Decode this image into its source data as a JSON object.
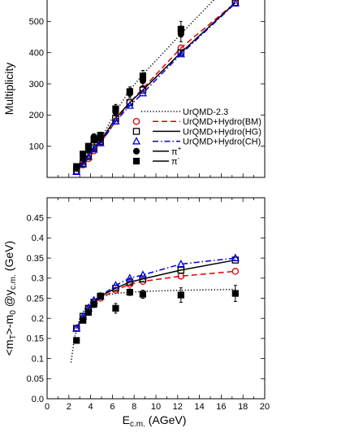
{
  "chart_data": [
    {
      "type": "line",
      "ylabel": "Multiplicity",
      "xlim": [
        0,
        20
      ],
      "ylim": [
        0,
        600
      ],
      "yticks": [
        100,
        200,
        300,
        400,
        500
      ],
      "legend": {
        "placement": "bottom-right",
        "entries": [
          {
            "label": "UrQMD-2.3",
            "kind": "line",
            "style": "dotted",
            "color": "#000000"
          },
          {
            "label": "UrQMD+Hydro(BM)",
            "kind": "line-marker",
            "style": "dashed",
            "marker": "circle-open",
            "color": "#dd0000"
          },
          {
            "label": "UrQMD+Hydro(HG)",
            "kind": "line-marker",
            "style": "solid",
            "marker": "square-open",
            "color": "#000000"
          },
          {
            "label": "UrQMD+Hydro(CH)",
            "kind": "line-marker",
            "style": "dashdot",
            "marker": "triangle-open",
            "color": "#0000dd"
          },
          {
            "label": "π",
            "sup": "+",
            "kind": "line",
            "style": "solid",
            "marker": "circle-filled",
            "color": "#000000"
          },
          {
            "label": "π",
            "sup": "-",
            "kind": "line",
            "style": "solid",
            "marker": "square-filled",
            "color": "#000000"
          }
        ]
      },
      "series": [
        {
          "id": "urqmd",
          "style": "dotted",
          "color": "#000000",
          "x": [
            2.5,
            3.3,
            4.2,
            5.2,
            6.3,
            7.6,
            8.8,
            12.3,
            17.3
          ],
          "y": [
            25,
            55,
            100,
            140,
            210,
            280,
            330,
            460,
            640
          ]
        },
        {
          "id": "bm",
          "style": "dashed",
          "marker": "circle-open",
          "color": "#dd0000",
          "x": [
            2.7,
            3.3,
            3.8,
            4.3,
            4.9,
            6.3,
            7.6,
            8.8,
            12.3,
            17.3
          ],
          "y": [
            20,
            40,
            60,
            85,
            110,
            180,
            240,
            285,
            415,
            560
          ]
        },
        {
          "id": "hg",
          "style": "solid",
          "marker": "square-open",
          "color": "#000000",
          "x": [
            2.7,
            3.3,
            3.8,
            4.3,
            4.9,
            6.3,
            7.6,
            8.8,
            12.3,
            17.3
          ],
          "y": [
            20,
            45,
            70,
            95,
            115,
            190,
            240,
            280,
            400,
            560
          ]
        },
        {
          "id": "ch",
          "style": "dashdot",
          "marker": "triangle-open",
          "color": "#0000dd",
          "x": [
            2.7,
            3.3,
            3.8,
            4.3,
            4.9,
            6.3,
            7.6,
            8.8,
            12.3,
            17.3
          ],
          "y": [
            18,
            42,
            65,
            90,
            110,
            180,
            230,
            270,
            395,
            558
          ]
        },
        {
          "id": "piplus",
          "style": "none",
          "marker": "circle-filled",
          "color": "#000000",
          "x": [
            2.7,
            3.3,
            3.8,
            4.3,
            4.9,
            6.3,
            7.6,
            8.8,
            12.3
          ],
          "y": [
            30,
            60,
            90,
            130,
            125,
            210,
            270,
            310,
            460
          ],
          "err": [
            5,
            6,
            8,
            10,
            10,
            14,
            15,
            18,
            25
          ]
        },
        {
          "id": "piminus",
          "style": "none",
          "marker": "square-filled",
          "color": "#000000",
          "x": [
            2.7,
            3.3,
            3.8,
            4.3,
            4.9,
            6.3,
            7.6,
            8.8,
            12.3
          ],
          "y": [
            35,
            75,
            100,
            120,
            135,
            220,
            275,
            325,
            475
          ],
          "err": [
            5,
            6,
            8,
            10,
            10,
            14,
            15,
            18,
            25
          ]
        }
      ]
    },
    {
      "type": "line",
      "ylabel_parts": {
        "main": "<m",
        "main_sub": "T",
        "mid": ">-m",
        "mid_sub": "0",
        "tail": " @y",
        "tail_sub": "c.m.",
        "unit": " (GeV)"
      },
      "xlabel_parts": {
        "main": "E",
        "sub": "c.m.",
        "unit": " (AGeV)"
      },
      "xlim": [
        0,
        20
      ],
      "ylim": [
        0,
        0.5
      ],
      "xticks": [
        0,
        2,
        4,
        6,
        8,
        10,
        12,
        14,
        16,
        18,
        20
      ],
      "xtick_labels": [
        "0",
        "2",
        "4",
        "6",
        "8",
        "10",
        "12",
        "14",
        "16",
        "18",
        "20"
      ],
      "yticks": [
        0.0,
        0.05,
        0.1,
        0.15,
        0.2,
        0.25,
        0.3,
        0.35,
        0.4,
        0.45
      ],
      "ytick_labels": [
        "0.0",
        "0.05",
        "0.1",
        "0.15",
        "0.2",
        "0.25",
        "0.3",
        "0.35",
        "0.4",
        "0.45"
      ],
      "series": [
        {
          "id": "urqmd",
          "style": "dotted",
          "color": "#000000",
          "x": [
            2.2,
            2.5,
            3.0,
            3.5,
            4.0,
            5.0,
            6.3,
            7.6,
            8.8,
            12.3,
            17.3
          ],
          "y": [
            0.09,
            0.15,
            0.2,
            0.225,
            0.24,
            0.255,
            0.262,
            0.265,
            0.267,
            0.27,
            0.272
          ]
        },
        {
          "id": "bm",
          "style": "dashed",
          "marker": "circle-open",
          "color": "#dd0000",
          "x": [
            2.7,
            3.3,
            3.8,
            4.3,
            4.9,
            6.3,
            7.6,
            8.8,
            12.3,
            17.3
          ],
          "y": [
            0.175,
            0.2,
            0.22,
            0.24,
            0.25,
            0.27,
            0.285,
            0.292,
            0.305,
            0.317
          ]
        },
        {
          "id": "hg",
          "style": "solid",
          "marker": "square-open",
          "color": "#000000",
          "x": [
            2.7,
            3.3,
            3.8,
            4.3,
            4.9,
            6.3,
            7.6,
            8.8,
            12.3,
            17.3
          ],
          "y": [
            0.175,
            0.205,
            0.225,
            0.24,
            0.255,
            0.275,
            0.29,
            0.298,
            0.32,
            0.345
          ]
        },
        {
          "id": "ch",
          "style": "dashdot",
          "marker": "triangle-open",
          "color": "#0000dd",
          "x": [
            2.7,
            3.3,
            3.8,
            4.3,
            4.9,
            6.3,
            7.6,
            8.8,
            12.3,
            17.3
          ],
          "y": [
            0.175,
            0.205,
            0.225,
            0.245,
            0.255,
            0.282,
            0.3,
            0.308,
            0.335,
            0.35
          ]
        },
        {
          "id": "data",
          "style": "none",
          "marker": "square-filled",
          "color": "#000000",
          "x": [
            2.7,
            3.3,
            3.8,
            4.3,
            4.9,
            6.3,
            7.6,
            8.8,
            12.3,
            17.3
          ],
          "y": [
            0.145,
            0.195,
            0.215,
            0.235,
            0.255,
            0.225,
            0.265,
            0.26,
            0.258,
            0.262
          ],
          "err": [
            0.005,
            0.006,
            0.007,
            0.008,
            0.008,
            0.012,
            0.008,
            0.01,
            0.018,
            0.02
          ]
        }
      ]
    }
  ]
}
